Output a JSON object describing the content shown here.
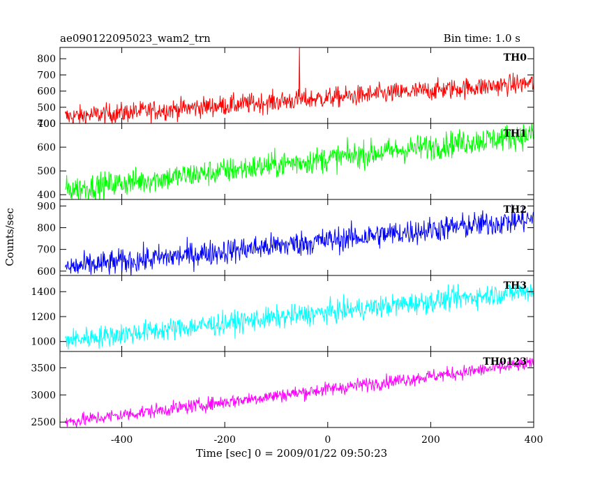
{
  "header": {
    "left": "ae090122095023_wam2_trn",
    "right": "Bin time: 1.0 s"
  },
  "chart_data": {
    "type": "line",
    "xlabel": "Time [sec] 0 = 2009/01/22 09:50:23",
    "ylabel": "Counts/sec",
    "xlim": [
      -520,
      400
    ],
    "x_ticks": [
      -400,
      -200,
      0,
      200,
      400
    ],
    "bin_time_s": 1.0,
    "grid": false,
    "panels": [
      {
        "name": "TH0",
        "color": "#ff0000",
        "ylim": [
          400,
          870
        ],
        "y_ticks": [
          400,
          500,
          600,
          700,
          800
        ],
        "trend": {
          "x": [
            -510,
            400
          ],
          "y": [
            440,
            650
          ]
        },
        "noise": 32,
        "spikes": [
          {
            "x": -55,
            "y": 870
          }
        ]
      },
      {
        "name": "TH1",
        "color": "#00ff00",
        "ylim": [
          380,
          700
        ],
        "y_ticks": [
          400,
          500,
          600,
          700
        ],
        "trend": {
          "x": [
            -510,
            400
          ],
          "y": [
            420,
            655
          ]
        },
        "noise": 28,
        "spikes": []
      },
      {
        "name": "TH2",
        "color": "#0000ff",
        "ylim": [
          580,
          930
        ],
        "y_ticks": [
          600,
          700,
          800,
          900
        ],
        "trend": {
          "x": [
            -510,
            400
          ],
          "y": [
            615,
            840
          ]
        },
        "noise": 30,
        "spikes": []
      },
      {
        "name": "TH3",
        "color": "#00ffff",
        "ylim": [
          920,
          1530
        ],
        "y_ticks": [
          1000,
          1200,
          1400
        ],
        "trend": {
          "x": [
            -510,
            400
          ],
          "y": [
            1010,
            1410
          ]
        },
        "noise": 45,
        "spikes": []
      },
      {
        "name": "TH0123",
        "color": "#ff00ff",
        "ylim": [
          2400,
          3800
        ],
        "y_ticks": [
          2500,
          3000,
          3500
        ],
        "trend": {
          "x": [
            -510,
            400
          ],
          "y": [
            2500,
            3580
          ]
        },
        "noise": 65,
        "spikes": [
          {
            "x": -55,
            "y": 3090
          }
        ]
      }
    ]
  }
}
